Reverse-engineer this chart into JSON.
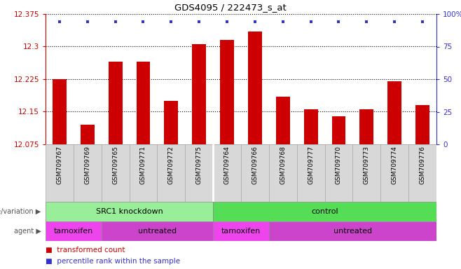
{
  "title": "GDS4095 / 222473_s_at",
  "samples": [
    "GSM709767",
    "GSM709769",
    "GSM709765",
    "GSM709771",
    "GSM709772",
    "GSM709775",
    "GSM709764",
    "GSM709766",
    "GSM709768",
    "GSM709777",
    "GSM709770",
    "GSM709773",
    "GSM709774",
    "GSM709776"
  ],
  "bar_values": [
    12.225,
    12.12,
    12.265,
    12.265,
    12.175,
    12.305,
    12.315,
    12.335,
    12.185,
    12.155,
    12.14,
    12.155,
    12.22,
    12.165
  ],
  "ymin": 12.075,
  "ymax": 12.375,
  "yticks": [
    12.075,
    12.15,
    12.225,
    12.3,
    12.375
  ],
  "ytick_labels": [
    "12.075",
    "12.15",
    "12.225",
    "12.3",
    "12.375"
  ],
  "right_yticks": [
    0,
    25,
    50,
    75,
    100
  ],
  "right_ytick_labels": [
    "0",
    "25",
    "50",
    "75",
    "100%"
  ],
  "bar_color": "#cc0000",
  "dot_color": "#3333cc",
  "axis_color_left": "#cc0000",
  "axis_color_right": "#3333cc",
  "bg_color": "#ffffff",
  "sample_box_color": "#d8d8d8",
  "genotype_groups": [
    {
      "label": "SRC1 knockdown",
      "start": 0,
      "end": 6,
      "color": "#99ee99"
    },
    {
      "label": "control",
      "start": 6,
      "end": 14,
      "color": "#55dd55"
    }
  ],
  "agent_groups": [
    {
      "label": "tamoxifen",
      "start": 0,
      "end": 2,
      "color": "#ee44ee"
    },
    {
      "label": "untreated",
      "start": 2,
      "end": 6,
      "color": "#cc44cc"
    },
    {
      "label": "tamoxifen",
      "start": 6,
      "end": 8,
      "color": "#ee44ee"
    },
    {
      "label": "untreated",
      "start": 8,
      "end": 14,
      "color": "#cc44cc"
    }
  ]
}
